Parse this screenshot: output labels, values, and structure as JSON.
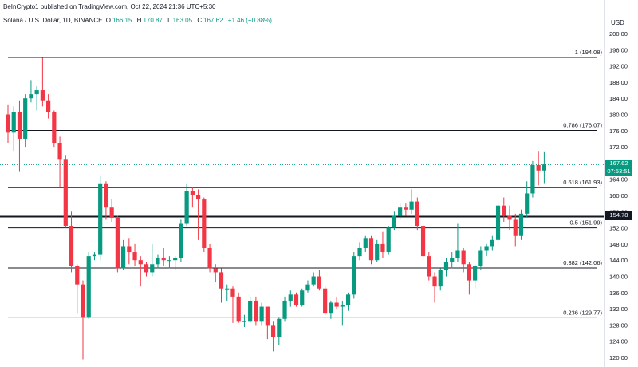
{
  "header": {
    "publisher": "BeInCrypto1 published on TradingView.com, Oct 22, 2024 21:36 UTC+5:30",
    "symbol": "Solana / U.S. Dollar, 1D, BINANCE",
    "ohlc": [
      {
        "label": "O",
        "value": "166.15"
      },
      {
        "label": "H",
        "value": "170.87"
      },
      {
        "label": "L",
        "value": "163.05"
      },
      {
        "label": "C",
        "value": "167.62"
      }
    ],
    "change": "+1.46 (+0.88%)"
  },
  "price_axis": {
    "currency": "USD",
    "current_price": "167.62",
    "countdown": "07:53:51",
    "level_price": "154.78"
  },
  "colors": {
    "up": "#089981",
    "down": "#f23645",
    "fib_line": "#131722",
    "current_line": "#089981"
  },
  "chart_data": {
    "type": "candlestick",
    "symbol": "Solana / U.S. Dollar",
    "interval": "1D",
    "ylim": [
      117,
      201
    ],
    "y_ticks": [
      120,
      124,
      128,
      132,
      136,
      140,
      144,
      148,
      152,
      156,
      160,
      164,
      168,
      172,
      176,
      180,
      184,
      188,
      192,
      196,
      200
    ],
    "horizontal_levels": [
      {
        "label": "1 (194.08)",
        "value": 194.08
      },
      {
        "label": "0.786 (176.07)",
        "value": 176.07
      },
      {
        "label": "0.618 (161.93)",
        "value": 161.93
      },
      {
        "label": "0.5 (151.99)",
        "value": 151.99
      },
      {
        "label": "0.382 (142.06)",
        "value": 142.06
      },
      {
        "label": "0.236 (129.77)",
        "value": 129.77
      }
    ],
    "price_line": 154.78,
    "current_price": 167.62,
    "candles": [
      [
        180,
        182.5,
        173,
        175.5
      ],
      [
        175.5,
        182,
        171,
        180.5
      ],
      [
        180.5,
        183.5,
        166,
        174
      ],
      [
        174,
        185,
        172,
        184
      ],
      [
        184,
        188.5,
        183,
        185
      ],
      [
        185,
        187,
        181,
        186
      ],
      [
        186,
        194,
        182,
        183.5
      ],
      [
        183.5,
        185,
        179,
        180.5
      ],
      [
        180.5,
        181,
        172,
        173
      ],
      [
        173,
        174.5,
        162,
        169
      ],
      [
        169,
        170,
        152,
        152.5
      ],
      [
        152.5,
        156,
        141,
        142.5
      ],
      [
        142.5,
        143,
        131,
        138
      ],
      [
        138,
        139,
        119.5,
        130
      ],
      [
        130,
        146,
        129.5,
        145
      ],
      [
        145,
        146,
        144,
        145.5
      ],
      [
        145.5,
        165,
        144,
        163
      ],
      [
        163,
        163.5,
        154,
        157
      ],
      [
        157,
        159,
        153.5,
        154.5
      ],
      [
        154.5,
        155,
        141,
        142
      ],
      [
        142,
        149,
        141.5,
        147.5
      ],
      [
        147.5,
        149.5,
        143,
        146
      ],
      [
        146,
        148,
        142.5,
        144
      ],
      [
        144,
        145,
        137.5,
        143
      ],
      [
        143,
        143.5,
        140,
        141
      ],
      [
        141,
        148,
        140,
        143
      ],
      [
        143,
        145.5,
        142,
        144.5
      ],
      [
        144.5,
        147,
        142.5,
        144
      ],
      [
        144,
        145,
        142,
        144
      ],
      [
        144,
        145,
        141.5,
        144.5
      ],
      [
        144.5,
        154,
        143.5,
        153
      ],
      [
        153,
        163,
        152.5,
        161
      ],
      [
        161,
        162,
        157,
        160
      ],
      [
        160,
        161.5,
        149,
        159
      ],
      [
        159,
        159.5,
        146,
        147
      ],
      [
        147,
        148,
        141,
        142
      ],
      [
        142,
        143,
        138.5,
        141
      ],
      [
        141,
        142,
        133.5,
        137
      ],
      [
        137,
        138,
        134,
        137
      ],
      [
        137,
        137.5,
        128.5,
        135
      ],
      [
        135,
        136,
        128.5,
        129
      ],
      [
        129,
        130.5,
        127.5,
        129
      ],
      [
        129,
        135,
        128.5,
        134
      ],
      [
        134,
        135,
        128,
        129
      ],
      [
        129,
        133.5,
        128,
        132.5
      ],
      [
        132.5,
        132.5,
        124.5,
        128
      ],
      [
        128,
        129,
        121.5,
        125
      ],
      [
        125,
        130,
        123,
        129.5
      ],
      [
        129.5,
        135,
        129,
        134
      ],
      [
        134,
        136.5,
        132.5,
        135.5
      ],
      [
        135.5,
        136,
        132.5,
        133
      ],
      [
        133,
        137,
        132.5,
        136.5
      ],
      [
        136.5,
        139,
        136,
        138
      ],
      [
        138,
        141,
        137.5,
        140
      ],
      [
        140,
        141.5,
        136.5,
        137
      ],
      [
        137,
        137.5,
        130.5,
        131
      ],
      [
        131,
        134,
        129.5,
        133.5
      ],
      [
        133.5,
        135,
        132,
        132.5
      ],
      [
        132.5,
        134,
        128,
        133
      ],
      [
        133,
        136,
        131.5,
        135.5
      ],
      [
        135.5,
        146,
        134.5,
        145
      ],
      [
        145,
        148.5,
        144,
        147
      ],
      [
        147,
        150,
        146,
        149.5
      ],
      [
        149.5,
        150,
        143,
        144
      ],
      [
        144,
        149,
        143.5,
        148
      ],
      [
        148,
        151,
        144.5,
        146
      ],
      [
        146,
        152.5,
        145.5,
        152
      ],
      [
        152,
        156,
        151.5,
        155
      ],
      [
        155,
        158,
        154,
        157
      ],
      [
        157,
        158,
        155,
        156.5
      ],
      [
        156.5,
        161.5,
        155.5,
        158.5
      ],
      [
        158.5,
        159.5,
        151.5,
        152.5
      ],
      [
        152.5,
        153,
        144,
        145
      ],
      [
        145,
        146,
        139,
        140
      ],
      [
        140,
        141,
        133.5,
        137.5
      ],
      [
        137.5,
        142,
        136.5,
        141.5
      ],
      [
        141.5,
        144.5,
        140,
        143.5
      ],
      [
        143.5,
        146,
        142,
        144.5
      ],
      [
        144.5,
        153,
        143.5,
        146.5
      ],
      [
        146.5,
        147,
        141,
        143
      ],
      [
        143,
        143.5,
        135.5,
        139
      ],
      [
        139,
        143,
        137,
        142.5
      ],
      [
        142.5,
        147.5,
        141.5,
        146.5
      ],
      [
        146.5,
        148,
        145,
        147.5
      ],
      [
        147.5,
        150,
        146.5,
        149
      ],
      [
        149,
        158.5,
        148,
        157.5
      ],
      [
        157.5,
        159.5,
        153.5,
        155
      ],
      [
        155,
        157.5,
        151.5,
        154
      ],
      [
        154,
        155.5,
        147.5,
        150
      ],
      [
        150,
        156.5,
        149,
        155.5
      ],
      [
        155.5,
        163.5,
        154.5,
        160.5
      ],
      [
        160.5,
        168.5,
        159.5,
        167.5
      ],
      [
        167.5,
        171,
        162.5,
        166.15
      ],
      [
        166.15,
        170.87,
        163.05,
        167.62
      ]
    ]
  }
}
